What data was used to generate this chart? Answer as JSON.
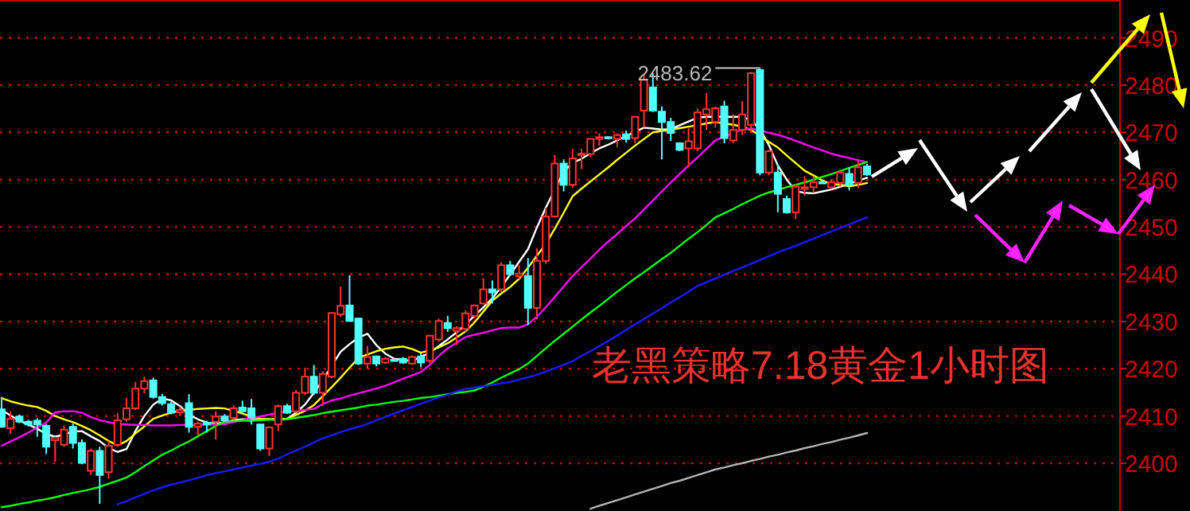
{
  "chart_data": {
    "type": "candlestick",
    "title": "老黑策略7.18黄金1小时图",
    "categories": [
      null,
      null,
      null,
      null,
      null,
      null,
      null,
      null,
      null,
      null,
      null,
      null,
      null,
      null,
      null,
      null,
      null,
      null,
      null,
      null,
      null,
      null,
      null,
      null,
      null,
      null,
      null,
      null,
      null,
      null,
      null,
      null,
      null,
      null,
      null,
      null,
      null,
      null,
      null,
      null,
      null,
      null,
      null,
      null,
      null,
      null,
      null,
      null,
      null,
      null,
      null,
      null,
      null,
      null,
      null,
      null,
      null,
      null,
      null,
      null,
      null,
      null,
      null,
      null,
      null,
      null,
      null,
      null,
      null,
      null,
      null,
      null,
      null,
      null,
      null,
      null,
      null,
      null,
      null,
      null,
      null,
      null,
      null,
      null,
      null,
      null,
      null,
      null,
      null,
      null,
      null,
      null,
      null,
      null,
      null,
      null,
      null,
      null
    ],
    "ohlc": [
      [
        2411.4,
        2414,
        2407.5,
        2407.7
      ],
      [
        2407.4,
        2411,
        2406.2,
        2409.4
      ],
      [
        2409.9,
        2410.3,
        2408.5,
        2408.8
      ],
      [
        2408.8,
        2409.2,
        2407.8,
        2408.2
      ],
      [
        2409,
        2409.5,
        2405.6,
        2408.2
      ],
      [
        2407.9,
        2408.3,
        2402,
        2403.5
      ],
      [
        2404.9,
        2405.6,
        2400.3,
        2405.4
      ],
      [
        2403.9,
        2408,
        2403.5,
        2407.1
      ],
      [
        2407.7,
        2408.4,
        2403.1,
        2404.3
      ],
      [
        2404.3,
        2405,
        2399.8,
        2400.1
      ],
      [
        2398.4,
        2403.1,
        2397.5,
        2402.6
      ],
      [
        2402.6,
        2403.5,
        2391.4,
        2397.5
      ],
      [
        2398.1,
        2404.8,
        2396.7,
        2403.7
      ],
      [
        2403.9,
        2410.6,
        2403.5,
        2409.1
      ],
      [
        2409.3,
        2413.8,
        2408.8,
        2411.6
      ],
      [
        2411.6,
        2417.2,
        2411.3,
        2415.8
      ],
      [
        2415.8,
        2418.3,
        2414.8,
        2417.4
      ],
      [
        2417.5,
        2418.1,
        2413.7,
        2414
      ],
      [
        2414,
        2414.7,
        2412.2,
        2412.7
      ],
      [
        2412.5,
        2413,
        2410.3,
        2410.7
      ],
      [
        2410.8,
        2412,
        2410,
        2411.3
      ],
      [
        2412.7,
        2414.6,
        2406.5,
        2407.7
      ],
      [
        2407.7,
        2408.8,
        2406,
        2408.4
      ],
      [
        2408.6,
        2409,
        2406.5,
        2408.2
      ],
      [
        2408.8,
        2411,
        2405,
        2409.9
      ],
      [
        2409.9,
        2410.4,
        2408.8,
        2409.1
      ],
      [
        2409.6,
        2412.2,
        2409.2,
        2411.6
      ],
      [
        2411.8,
        2413.2,
        2410.7,
        2411
      ],
      [
        2411.6,
        2413.6,
        2408.2,
        2409.7
      ],
      [
        2408.2,
        2408.4,
        2402.6,
        2403.1
      ],
      [
        2403.1,
        2407.8,
        2401.5,
        2407.6
      ],
      [
        2408.2,
        2412.4,
        2406.8,
        2412.1
      ],
      [
        2412.1,
        2412.6,
        2410.4,
        2410.7
      ],
      [
        2411,
        2415.5,
        2410.7,
        2414.9
      ],
      [
        2414.9,
        2420.2,
        2414.4,
        2418.3
      ],
      [
        2418.3,
        2420.8,
        2414.4,
        2414.9
      ],
      [
        2414.9,
        2419.5,
        2412.1,
        2418.9
      ],
      [
        2418.3,
        2432,
        2418,
        2431.8
      ],
      [
        2431.5,
        2437.4,
        2431,
        2433.3
      ],
      [
        2433.4,
        2439.8,
        2430.1,
        2430.1
      ],
      [
        2430.6,
        2430.8,
        2420.8,
        2421.1
      ],
      [
        2421.1,
        2424.8,
        2420,
        2422.5
      ],
      [
        2422.6,
        2422.8,
        2420.5,
        2421.1
      ],
      [
        2421.3,
        2422.5,
        2421,
        2422.1
      ],
      [
        2421.9,
        2422.1,
        2421.5,
        2421.8
      ],
      [
        2422.1,
        2422.5,
        2421,
        2421.3
      ],
      [
        2421.1,
        2422.8,
        2420.8,
        2422.5
      ],
      [
        2422.6,
        2423.3,
        2420.3,
        2421.3
      ],
      [
        2421.7,
        2427.2,
        2421.1,
        2427
      ],
      [
        2426.2,
        2430.6,
        2425.7,
        2430.1
      ],
      [
        2429.7,
        2431.2,
        2427.8,
        2428.6
      ],
      [
        2428,
        2429,
        2425,
        2428.6
      ],
      [
        2428.4,
        2432.3,
        2427.8,
        2431.7
      ],
      [
        2431.2,
        2433.6,
        2430.6,
        2433.4
      ],
      [
        2433.8,
        2439.1,
        2433.6,
        2436.8
      ],
      [
        2436.8,
        2438.7,
        2433.8,
        2436.1
      ],
      [
        2436.8,
        2442.5,
        2436.2,
        2441.9
      ],
      [
        2441.9,
        2442.8,
        2439.6,
        2440
      ],
      [
        2439.6,
        2441.9,
        2438.9,
        2440.1
      ],
      [
        2439.6,
        2443.4,
        2429.2,
        2432.9
      ],
      [
        2432.9,
        2445.5,
        2430.4,
        2442.8
      ],
      [
        2442.8,
        2454,
        2442.2,
        2452.2
      ],
      [
        2452.2,
        2465.2,
        2452,
        2463.4
      ],
      [
        2463.4,
        2464.3,
        2457.5,
        2458.9
      ],
      [
        2458.9,
        2466.5,
        2458.3,
        2464.5
      ],
      [
        2465.2,
        2466.5,
        2462.2,
        2465.5
      ],
      [
        2465.4,
        2468.8,
        2464.8,
        2468.6
      ],
      [
        2468.6,
        2469.8,
        2467.1,
        2469
      ],
      [
        2469,
        2469.1,
        2468.5,
        2468.8
      ],
      [
        2468.6,
        2469.8,
        2466.9,
        2469.4
      ],
      [
        2469.6,
        2470.4,
        2467.8,
        2468.6
      ],
      [
        2468.8,
        2473.5,
        2467.7,
        2473.3
      ],
      [
        2474.6,
        2482.3,
        2471,
        2481.1
      ],
      [
        2479.5,
        2482.5,
        2474.3,
        2474.6
      ],
      [
        2474.4,
        2475.5,
        2464.3,
        2472.2
      ],
      [
        2472.2,
        2473.1,
        2468.2,
        2469.9
      ],
      [
        2467.7,
        2467.9,
        2466,
        2466.3
      ],
      [
        2466.6,
        2471,
        2462.6,
        2468.1
      ],
      [
        2466.6,
        2475,
        2466,
        2474.2
      ],
      [
        2473.8,
        2478.3,
        2470.5,
        2474.9
      ],
      [
        2472.2,
        2475.5,
        2471,
        2475.1
      ],
      [
        2475.5,
        2476.7,
        2467.7,
        2468.8
      ],
      [
        2468.3,
        2473.8,
        2467.7,
        2470.5
      ],
      [
        2470.5,
        2476.6,
        2469.4,
        2473.8
      ],
      [
        2471.6,
        2482.8,
        2469.9,
        2482.5
      ],
      [
        2483.2,
        2483.62,
        2460.9,
        2461.5
      ],
      [
        2461.5,
        2466.3,
        2460.9,
        2466
      ],
      [
        2461.5,
        2463.3,
        2453.1,
        2457
      ],
      [
        2455.9,
        2456.6,
        2452.8,
        2453.1
      ],
      [
        2453.1,
        2459,
        2451.7,
        2458.5
      ],
      [
        2458,
        2460.7,
        2456.6,
        2458.4
      ],
      [
        2458.4,
        2460.7,
        2457.2,
        2459.5
      ],
      [
        2459.5,
        2459.8,
        2459,
        2459.2
      ],
      [
        2458.4,
        2460.1,
        2458,
        2459.5
      ],
      [
        2459.3,
        2461.9,
        2458.5,
        2461.5
      ],
      [
        2461.2,
        2462.6,
        2457.7,
        2458.9
      ],
      [
        2459.3,
        2463.9,
        2458.2,
        2462.6
      ],
      [
        2462.8,
        2463.3,
        2460.8,
        2461.1
      ]
    ],
    "series": [
      {
        "type": "line",
        "color": "#ffffff",
        "values": [
          2411.3,
          2410.1,
          2409,
          2408.2,
          2407.3,
          2406.2,
          2405.6,
          2406.1,
          2406.7,
          2406.8,
          2405.7,
          2404.7,
          2403.2,
          2402.4,
          2403,
          2406.8,
          2410,
          2412.4,
          2413.7,
          2413.3,
          2412.1,
          2410.3,
          2409.3,
          2408.6,
          2408.4,
          2408.7,
          2409.1,
          2409.3,
          2409.3,
          2409.3,
          2409.3,
          2409.3,
          2409.4,
          2410.7,
          2412.4,
          2414.9,
          2417.6,
          2420.6,
          2423.6,
          2425.2,
          2426.6,
          2427.4,
          2425,
          2423.2,
          2422.1,
          2421.9,
          2421.6,
          2422.6,
          2423.3,
          2424.8,
          2426.2,
          2427.7,
          2429.3,
          2431.2,
          2433,
          2434.9,
          2437.3,
          2439.9,
          2442.6,
          2445.3,
          2449.9,
          2454.1,
          2457.9,
          2461.7,
          2463.6,
          2464.4,
          2465.6,
          2466.6,
          2467.4,
          2468.3,
          2469.2,
          2470.1,
          2471,
          2470.8,
          2470.6,
          2470.7,
          2471.5,
          2472.3,
          2473.1,
          2473.3,
          2473.3,
          2473.3,
          2473.3,
          2473.3,
          2472.5,
          2470.7,
          2467.3,
          2463,
          2460,
          2457.6,
          2457.2,
          2457.1,
          2457.5,
          2457.9,
          2458.5,
          2459.1,
          2459.8,
          2460.4
        ]
      },
      {
        "type": "line",
        "color": "#ffff00",
        "values": [
          2413.8,
          2413.1,
          2412.6,
          2412.2,
          2411.9,
          2411.1,
          2410,
          2409.3,
          2408.7,
          2407.9,
          2407,
          2405.9,
          2404.7,
          2403.8,
          2404.7,
          2406.3,
          2407.8,
          2409.4,
          2410.1,
          2410.7,
          2411.1,
          2411.3,
          2411.5,
          2411.6,
          2411.7,
          2411.6,
          2411.1,
          2410.5,
          2409.9,
          2409.4,
          2409.3,
          2409.3,
          2409.4,
          2410.2,
          2411.1,
          2412.3,
          2414.2,
          2416.1,
          2418.1,
          2420.2,
          2422.3,
          2423,
          2423.7,
          2424.2,
          2424.5,
          2424.7,
          2424.2,
          2423.4,
          2423.9,
          2424.5,
          2425.4,
          2426.6,
          2427.9,
          2429.8,
          2432.1,
          2434.4,
          2435.9,
          2437.3,
          2439,
          2441.4,
          2443.9,
          2446.4,
          2449.6,
          2453,
          2456.5,
          2458.1,
          2459.6,
          2461.1,
          2462.6,
          2464.2,
          2465.7,
          2467.2,
          2468.6,
          2470,
          2470.3,
          2470.6,
          2470.9,
          2471.2,
          2471.5,
          2471.9,
          2472.2,
          2471.9,
          2471.6,
          2471.2,
          2470.5,
          2469.3,
          2468,
          2466.8,
          2465.1,
          2463.5,
          2461.9,
          2460.9,
          2459.8,
          2459.1,
          2458.9,
          2458.6,
          2458.9,
          2459.3
        ]
      },
      {
        "type": "line",
        "color": "#ff00ff",
        "values": [
          2403.7,
          2404.6,
          2405.5,
          2406.5,
          2407.6,
          2408.6,
          2410.8,
          2411,
          2411,
          2410.7,
          2409.8,
          2409.1,
          2408.7,
          2408.3,
          2408.2,
          2408.1,
          2408.1,
          2408,
          2408,
          2408,
          2408.1,
          2408.1,
          2408.1,
          2408.2,
          2408.2,
          2408.3,
          2408.7,
          2409.1,
          2409.5,
          2409.9,
          2410.3,
          2410.7,
          2410.9,
          2411.1,
          2411.3,
          2411.5,
          2412.5,
          2413.3,
          2413.7,
          2414.3,
          2414.8,
          2415.3,
          2415.8,
          2416.4,
          2417.1,
          2417.9,
          2418.6,
          2419.3,
          2420.8,
          2422.7,
          2424.3,
          2425.5,
          2426.7,
          2427.2,
          2427.6,
          2428.1,
          2428.6,
          2428.7,
          2428.7,
          2429.4,
          2431,
          2433,
          2435.2,
          2437.4,
          2439.6,
          2441.5,
          2443.3,
          2445.2,
          2446.9,
          2448.5,
          2450.2,
          2451.8,
          2453.7,
          2455.6,
          2457.5,
          2459.4,
          2461.2,
          2463,
          2464.7,
          2466.5,
          2468.3,
          2469.1,
          2469.8,
          2470.6,
          2470.8,
          2470.4,
          2469.9,
          2469.5,
          2468.9,
          2468.2,
          2467.5,
          2466.8,
          2466.2,
          2465.5,
          2465,
          2464.6,
          2464.1,
          2463.7
        ]
      },
      {
        "type": "line",
        "color": "#00ff00",
        "values": [
          2390.7,
          2391,
          2391.4,
          2391.7,
          2392.1,
          2392.4,
          2392.8,
          2393.3,
          2393.7,
          2394.1,
          2394.5,
          2395,
          2395.7,
          2396.3,
          2397,
          2398.1,
          2399.4,
          2400.6,
          2401.8,
          2402.7,
          2403.7,
          2404.6,
          2405.7,
          2406.8,
          2407.9,
          2408.8,
          2408.9,
          2409,
          2409,
          2409.1,
          2409.2,
          2409.2,
          2409.3,
          2409.6,
          2409.9,
          2410.2,
          2410.6,
          2410.9,
          2411.2,
          2411.5,
          2411.8,
          2412.2,
          2412.4,
          2412.7,
          2413,
          2413.2,
          2413.5,
          2413.8,
          2414,
          2414.3,
          2414.6,
          2414.9,
          2415.1,
          2415.4,
          2416.2,
          2417.1,
          2418.1,
          2419,
          2419.9,
          2421.1,
          2422.7,
          2424.3,
          2425.9,
          2427.4,
          2428.9,
          2430.4,
          2431.9,
          2433.3,
          2434.8,
          2436.3,
          2437.7,
          2439.1,
          2440.4,
          2441.8,
          2443.2,
          2444.5,
          2446,
          2447.5,
          2448.9,
          2450.4,
          2452,
          2452.9,
          2453.8,
          2454.8,
          2455.7,
          2456.6,
          2457.3,
          2457.8,
          2458.4,
          2458.9,
          2459.4,
          2460,
          2460.6,
          2461.2,
          2461.8,
          2462.5,
          2463.1,
          2463.7
        ]
      },
      {
        "type": "line",
        "color": "#1a1aff",
        "values": [
          null,
          null,
          null,
          null,
          null,
          null,
          null,
          null,
          null,
          null,
          null,
          null,
          null,
          2391.3,
          2392,
          2392.8,
          2393.5,
          2394.3,
          2394.9,
          2395.5,
          2395.9,
          2396.4,
          2396.9,
          2397.5,
          2397.9,
          2398.3,
          2398.7,
          2399.1,
          2399.5,
          2399.9,
          2400.3,
          2401,
          2401.9,
          2402.7,
          2403.5,
          2404.4,
          2405.3,
          2405.9,
          2406.6,
          2407.2,
          2407.7,
          2408.3,
          2409.1,
          2409.8,
          2410.5,
          2411.2,
          2411.9,
          2412.6,
          2413.3,
          2413.9,
          2414.5,
          2415.2,
          2415.7,
          2416,
          2416.3,
          2416.6,
          2416.9,
          2417.2,
          2417.7,
          2418.2,
          2418.7,
          2419.4,
          2420.1,
          2420.8,
          2421.6,
          2422.7,
          2423.7,
          2424.8,
          2425.9,
          2427,
          2428.2,
          2429.4,
          2430.5,
          2431.7,
          2432.8,
          2434,
          2435.1,
          2436.3,
          2437.5,
          2438.3,
          2439.1,
          2439.9,
          2440.7,
          2441.4,
          2442.2,
          2443,
          2443.8,
          2444.6,
          2445.3,
          2446,
          2446.8,
          2447.5,
          2448.3,
          2449,
          2449.8,
          2450.5,
          2451.3,
          2452
        ]
      },
      {
        "type": "line",
        "color": "#b4b4b4",
        "values": [
          null,
          null,
          null,
          null,
          null,
          null,
          null,
          null,
          null,
          null,
          null,
          null,
          null,
          null,
          null,
          null,
          null,
          null,
          null,
          null,
          null,
          null,
          null,
          null,
          null,
          null,
          null,
          null,
          null,
          null,
          null,
          null,
          null,
          null,
          null,
          null,
          null,
          null,
          null,
          null,
          null,
          null,
          null,
          null,
          null,
          null,
          null,
          null,
          null,
          null,
          null,
          null,
          null,
          null,
          null,
          null,
          null,
          null,
          null,
          null,
          null,
          null,
          null,
          null,
          null,
          null,
          2390.4,
          2391,
          2391.6,
          2392.2,
          2392.8,
          2393.4,
          2394,
          2394.6,
          2395.2,
          2395.8,
          2396.3,
          2396.9,
          2397.5,
          2398.1,
          2398.7,
          2399.1,
          2399.6,
          2400,
          2400.5,
          2400.9,
          2401.4,
          2401.8,
          2402.3,
          2402.7,
          2403.2,
          2403.6,
          2404.1,
          2404.5,
          2405,
          2405.4,
          2405.9,
          2406.4
        ]
      }
    ],
    "annotations": [
      "2483.62"
    ],
    "ylim": [
      2389.9,
      2498
    ],
    "yticks": [
      2400,
      2410,
      2420,
      2430,
      2440,
      2450,
      2460,
      2470,
      2480,
      2490
    ],
    "grid": "y",
    "tick_labels": "y"
  }
}
